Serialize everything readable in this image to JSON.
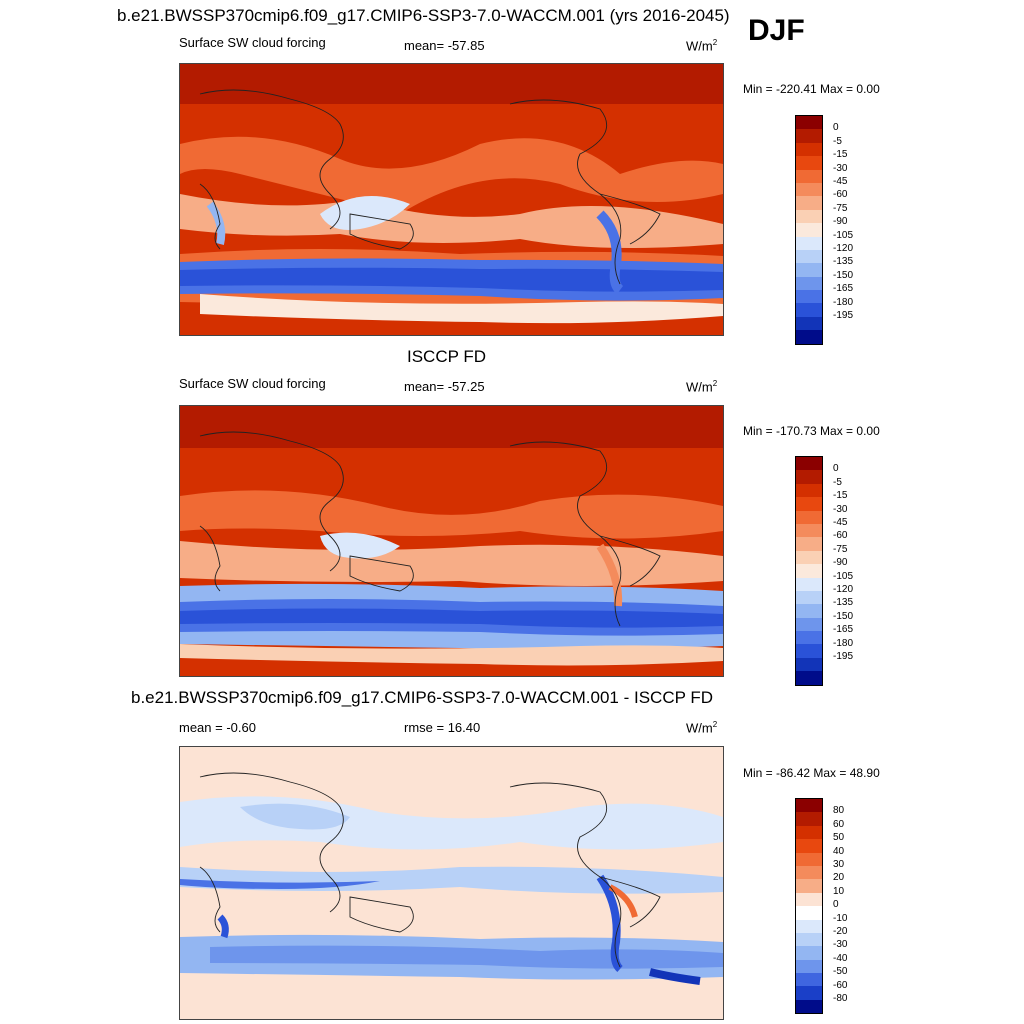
{
  "season": "DJF",
  "panels": [
    {
      "title": "b.e21.BWSSP370cmip6.f09_g17.CMIP6-SSP3-7.0-WACCM.001 (yrs 2016-2045)",
      "left_label": "Surface SW cloud forcing",
      "center_label": "mean= -57.85",
      "units": "W/m",
      "units_sup": "2",
      "minmax": "Min = -220.41 Max =   0.00",
      "colorbar_labels": [
        "0",
        "-5",
        "-15",
        "-30",
        "-45",
        "-60",
        "-75",
        "-90",
        "-105",
        "-120",
        "-135",
        "-150",
        "-165",
        "-180",
        "-195"
      ],
      "colors": [
        "#8b0000",
        "#b31b00",
        "#d43000",
        "#e8480f",
        "#f06a34",
        "#f48b5c",
        "#f7ad87",
        "#fad0b4",
        "#fbe9dc",
        "#dbe8fb",
        "#b8d1f7",
        "#93b6f2",
        "#6e95ec",
        "#4a72e6",
        "#2a52d8",
        "#1234b8",
        "#000c8a"
      ]
    },
    {
      "title": "ISCCP FD",
      "left_label": "Surface SW cloud forcing",
      "center_label": "mean= -57.25",
      "units": "W/m",
      "units_sup": "2",
      "minmax": "Min = -170.73 Max =   0.00",
      "colorbar_labels": [
        "0",
        "-5",
        "-15",
        "-30",
        "-45",
        "-60",
        "-75",
        "-90",
        "-105",
        "-120",
        "-135",
        "-150",
        "-165",
        "-180",
        "-195"
      ],
      "colors": [
        "#8b0000",
        "#b31b00",
        "#d43000",
        "#e8480f",
        "#f06a34",
        "#f48b5c",
        "#f7ad87",
        "#fad0b4",
        "#fbe9dc",
        "#dbe8fb",
        "#b8d1f7",
        "#93b6f2",
        "#6e95ec",
        "#4a72e6",
        "#2a52d8",
        "#1234b8",
        "#000c8a"
      ]
    },
    {
      "title": "b.e21.BWSSP370cmip6.f09_g17.CMIP6-SSP3-7.0-WACCM.001 - ISCCP FD",
      "left_label": "mean =  -0.60",
      "center_label": "rmse =  16.40",
      "units": "W/m",
      "units_sup": "2",
      "minmax": "Min = -86.42 Max =  48.90",
      "colorbar_labels": [
        "80",
        "60",
        "50",
        "40",
        "30",
        "20",
        "10",
        "0",
        "-10",
        "-20",
        "-30",
        "-40",
        "-50",
        "-60",
        "-80"
      ],
      "colors": [
        "#8b0000",
        "#b31b00",
        "#d43000",
        "#e8480f",
        "#f06a34",
        "#f48b5c",
        "#f7ad87",
        "#fce3d4",
        "#ffffff",
        "#dbe8fb",
        "#b8d1f7",
        "#93b6f2",
        "#6e95ec",
        "#3f66e0",
        "#1a3fc8",
        "#000c8a"
      ]
    }
  ]
}
